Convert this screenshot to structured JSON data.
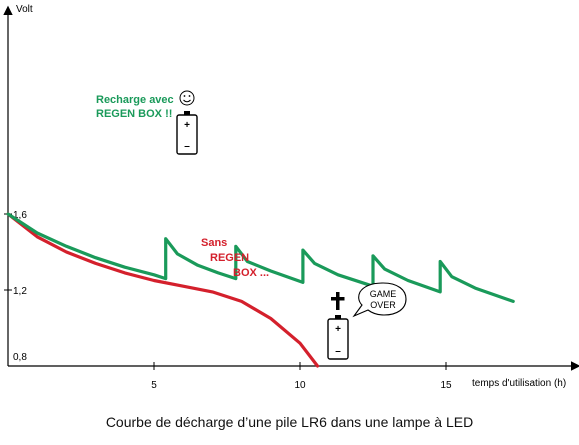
{
  "chart_data": {
    "type": "line",
    "title": "",
    "xlabel": "temps d'utilisation (h)",
    "ylabel": "Volt",
    "xlim": [
      0,
      19
    ],
    "ylim": [
      0.8,
      1.7
    ],
    "x_ticks": [
      5,
      10,
      15
    ],
    "x_tick_labels": [
      "5",
      "10",
      "15"
    ],
    "y_ticks": [
      0.8,
      1.2,
      1.6
    ],
    "y_tick_labels": [
      "0,8",
      "1,2",
      "1,6"
    ],
    "grid": false,
    "legend": "none",
    "series": [
      {
        "name": "Sans REGEN BOX ...",
        "color": "#d4202c",
        "points": [
          [
            0,
            1.6
          ],
          [
            0.5,
            1.54
          ],
          [
            1,
            1.48
          ],
          [
            2,
            1.4
          ],
          [
            3,
            1.34
          ],
          [
            4,
            1.29
          ],
          [
            5,
            1.25
          ],
          [
            6,
            1.22
          ],
          [
            7,
            1.19
          ],
          [
            8,
            1.14
          ],
          [
            9,
            1.05
          ],
          [
            10,
            0.92
          ],
          [
            10.6,
            0.8
          ]
        ]
      },
      {
        "name": "Recharge avec REGEN BOX !!",
        "color": "#1a9a5a",
        "points": [
          [
            0,
            1.6
          ],
          [
            0.5,
            1.55
          ],
          [
            1,
            1.5
          ],
          [
            2,
            1.43
          ],
          [
            3,
            1.37
          ],
          [
            4,
            1.32
          ],
          [
            5,
            1.28
          ],
          [
            5.4,
            1.26
          ],
          [
            5.4,
            1.47
          ],
          [
            5.8,
            1.39
          ],
          [
            6.5,
            1.33
          ],
          [
            7.2,
            1.29
          ],
          [
            7.8,
            1.26
          ],
          [
            7.8,
            1.43
          ],
          [
            8.2,
            1.35
          ],
          [
            9,
            1.3
          ],
          [
            10.1,
            1.24
          ],
          [
            10.1,
            1.41
          ],
          [
            10.5,
            1.34
          ],
          [
            11.3,
            1.28
          ],
          [
            12.5,
            1.22
          ],
          [
            12.5,
            1.38
          ],
          [
            12.9,
            1.31
          ],
          [
            13.7,
            1.25
          ],
          [
            14.8,
            1.19
          ],
          [
            14.8,
            1.35
          ],
          [
            15.2,
            1.27
          ],
          [
            16,
            1.21
          ],
          [
            17.3,
            1.14
          ]
        ]
      }
    ],
    "annotations": {
      "green_label": [
        "Recharge avec",
        "REGEN BOX !!"
      ],
      "red_label": [
        "Sans",
        "REGEN",
        "BOX ..."
      ],
      "bubble": [
        "GAME",
        "OVER"
      ],
      "battery_plus": "+",
      "battery_minus": "–"
    }
  },
  "caption": "Courbe de décharge d’une pile LR6 dans une lampe à LED"
}
